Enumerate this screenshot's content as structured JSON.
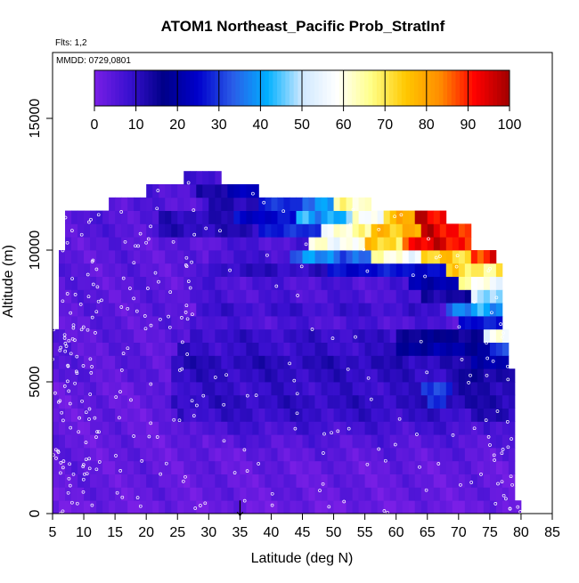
{
  "chart_data": {
    "type": "heatmap",
    "title": "ATOM1 Northeast_Pacific Prob_StratInf",
    "notes": [
      "Flts: 1,2",
      "MMDD: 0729,0801"
    ],
    "xlabel": "Latitude (deg N)",
    "ylabel": "Altitude (m)",
    "xlim": [
      5,
      85
    ],
    "ylim": [
      0,
      17500
    ],
    "xticks": [
      "5",
      "10",
      "15",
      "20",
      "25",
      "30",
      "35",
      "40",
      "45",
      "50",
      "55",
      "60",
      "65",
      "70",
      "75",
      "80",
      "85"
    ],
    "yticks": [
      "0",
      "5000",
      "10000",
      "15000"
    ],
    "colorbar": {
      "min": 0,
      "max": 100,
      "ticks": [
        "0",
        "10",
        "20",
        "30",
        "40",
        "50",
        "60",
        "70",
        "80",
        "90",
        "100"
      ],
      "stops": [
        "#7a1fe6",
        "#3a10d0",
        "#000088",
        "#0000cc",
        "#2a5ce8",
        "#00b0ff",
        "#cfe8ff",
        "#ffffff",
        "#ffff88",
        "#ffc800",
        "#ff8c00",
        "#ff0000",
        "#a00000"
      ],
      "placement": "top-inside"
    },
    "marker": {
      "label": "↓",
      "x": 35
    },
    "cell": {
      "dx": 1,
      "dy": 500
    },
    "bands": [
      {
        "y0": 0,
        "y1": 500,
        "x0": 5,
        "x1": 80,
        "segs": [
          [
            5,
            80,
            2
          ]
        ]
      },
      {
        "y0": 500,
        "y1": 1000,
        "x0": 5,
        "x1": 79,
        "segs": [
          [
            5,
            79,
            3
          ]
        ]
      },
      {
        "y0": 1000,
        "y1": 1500,
        "x0": 5,
        "x1": 79,
        "segs": [
          [
            5,
            79,
            3
          ]
        ]
      },
      {
        "y0": 1500,
        "y1": 2000,
        "x0": 5,
        "x1": 79,
        "segs": [
          [
            5,
            79,
            3
          ]
        ]
      },
      {
        "y0": 2000,
        "y1": 2500,
        "x0": 5,
        "x1": 79,
        "segs": [
          [
            5,
            40,
            3
          ],
          [
            40,
            79,
            4
          ]
        ]
      },
      {
        "y0": 2500,
        "y1": 3000,
        "x0": 5,
        "x1": 79,
        "segs": [
          [
            5,
            30,
            3
          ],
          [
            30,
            79,
            5
          ]
        ]
      },
      {
        "y0": 3000,
        "y1": 3500,
        "x0": 5,
        "x1": 79,
        "segs": [
          [
            5,
            28,
            3
          ],
          [
            28,
            75,
            7
          ],
          [
            75,
            79,
            5
          ]
        ]
      },
      {
        "y0": 3500,
        "y1": 4000,
        "x0": 5,
        "x1": 79,
        "segs": [
          [
            5,
            25,
            3
          ],
          [
            25,
            72,
            9
          ],
          [
            72,
            79,
            11
          ]
        ]
      },
      {
        "y0": 4000,
        "y1": 4500,
        "x0": 5,
        "x1": 79,
        "segs": [
          [
            5,
            24,
            3
          ],
          [
            24,
            65,
            10
          ],
          [
            65,
            68,
            30
          ],
          [
            68,
            79,
            12
          ]
        ]
      },
      {
        "y0": 4500,
        "y1": 5000,
        "x0": 5,
        "x1": 79,
        "segs": [
          [
            5,
            24,
            3
          ],
          [
            24,
            64,
            9
          ],
          [
            64,
            69,
            33
          ],
          [
            69,
            79,
            12
          ]
        ]
      },
      {
        "y0": 5000,
        "y1": 5500,
        "x0": 5,
        "x1": 79,
        "segs": [
          [
            5,
            24,
            4
          ],
          [
            24,
            70,
            10
          ],
          [
            70,
            79,
            14
          ]
        ]
      },
      {
        "y0": 5500,
        "y1": 6000,
        "x0": 5,
        "x1": 78,
        "segs": [
          [
            5,
            24,
            4
          ],
          [
            24,
            72,
            11
          ],
          [
            72,
            78,
            22
          ]
        ]
      },
      {
        "y0": 6000,
        "y1": 6500,
        "x0": 5,
        "x1": 78,
        "segs": [
          [
            5,
            25,
            4
          ],
          [
            25,
            60,
            9
          ],
          [
            60,
            75,
            20
          ],
          [
            75,
            78,
            30
          ]
        ]
      },
      {
        "y0": 6500,
        "y1": 7000,
        "x0": 5,
        "x1": 78,
        "segs": [
          [
            5,
            27,
            4
          ],
          [
            27,
            60,
            9
          ],
          [
            60,
            74,
            16
          ],
          [
            74,
            78,
            55
          ]
        ]
      },
      {
        "y0": 7000,
        "y1": 7500,
        "x0": 6,
        "x1": 77,
        "segs": [
          [
            6,
            27,
            4
          ],
          [
            27,
            30,
            8
          ],
          [
            30,
            70,
            6
          ],
          [
            70,
            77,
            26
          ]
        ]
      },
      {
        "y0": 7500,
        "y1": 8000,
        "x0": 6,
        "x1": 77,
        "segs": [
          [
            6,
            28,
            4
          ],
          [
            28,
            68,
            8
          ],
          [
            68,
            77,
            38
          ]
        ]
      },
      {
        "y0": 8000,
        "y1": 8500,
        "x0": 6,
        "x1": 77,
        "segs": [
          [
            6,
            25,
            4
          ],
          [
            25,
            64,
            6
          ],
          [
            64,
            72,
            14
          ],
          [
            72,
            77,
            48
          ]
        ]
      },
      {
        "y0": 8500,
        "y1": 9000,
        "x0": 6,
        "x1": 77,
        "segs": [
          [
            6,
            27,
            4
          ],
          [
            27,
            62,
            6
          ],
          [
            62,
            70,
            22
          ],
          [
            70,
            77,
            60
          ]
        ]
      },
      {
        "y0": 9000,
        "y1": 9500,
        "x0": 6,
        "x1": 77,
        "segs": [
          [
            6,
            30,
            4
          ],
          [
            30,
            49,
            10
          ],
          [
            49,
            68,
            26
          ],
          [
            68,
            77,
            70
          ]
        ]
      },
      {
        "y0": 9500,
        "y1": 10000,
        "x0": 6,
        "x1": 76,
        "segs": [
          [
            6,
            30,
            4
          ],
          [
            30,
            43,
            7
          ],
          [
            43,
            56,
            36
          ],
          [
            56,
            64,
            60
          ],
          [
            64,
            72,
            72
          ],
          [
            72,
            76,
            92
          ]
        ]
      },
      {
        "y0": 10000,
        "y1": 10500,
        "x0": 7,
        "x1": 72,
        "segs": [
          [
            7,
            31,
            4
          ],
          [
            31,
            46,
            6
          ],
          [
            46,
            55,
            60
          ],
          [
            55,
            61,
            72
          ],
          [
            61,
            72,
            92
          ]
        ]
      },
      {
        "y0": 10500,
        "y1": 11000,
        "x0": 7,
        "x1": 72,
        "segs": [
          [
            7,
            22,
            5
          ],
          [
            22,
            38,
            11
          ],
          [
            38,
            48,
            28
          ],
          [
            48,
            56,
            62
          ],
          [
            56,
            64,
            78
          ],
          [
            64,
            72,
            93
          ]
        ]
      },
      {
        "y0": 11000,
        "y1": 11500,
        "x0": 7,
        "x1": 68,
        "segs": [
          [
            7,
            22,
            5
          ],
          [
            22,
            34,
            11
          ],
          [
            34,
            44,
            25
          ],
          [
            44,
            53,
            42
          ],
          [
            53,
            58,
            58
          ],
          [
            58,
            63,
            78
          ],
          [
            63,
            68,
            93
          ]
        ]
      },
      {
        "y0": 11500,
        "y1": 12000,
        "x0": 14,
        "x1": 56,
        "segs": [
          [
            14,
            30,
            5
          ],
          [
            30,
            38,
            12
          ],
          [
            38,
            45,
            28
          ],
          [
            45,
            50,
            40
          ],
          [
            50,
            56,
            62
          ]
        ]
      },
      {
        "y0": 12000,
        "y1": 12500,
        "x0": 20,
        "x1": 38,
        "segs": [
          [
            20,
            28,
            6
          ],
          [
            28,
            33,
            12
          ],
          [
            33,
            38,
            24
          ]
        ]
      },
      {
        "y0": 12500,
        "y1": 13000,
        "x0": 26,
        "x1": 32,
        "segs": [
          [
            26,
            32,
            7
          ]
        ]
      }
    ]
  }
}
